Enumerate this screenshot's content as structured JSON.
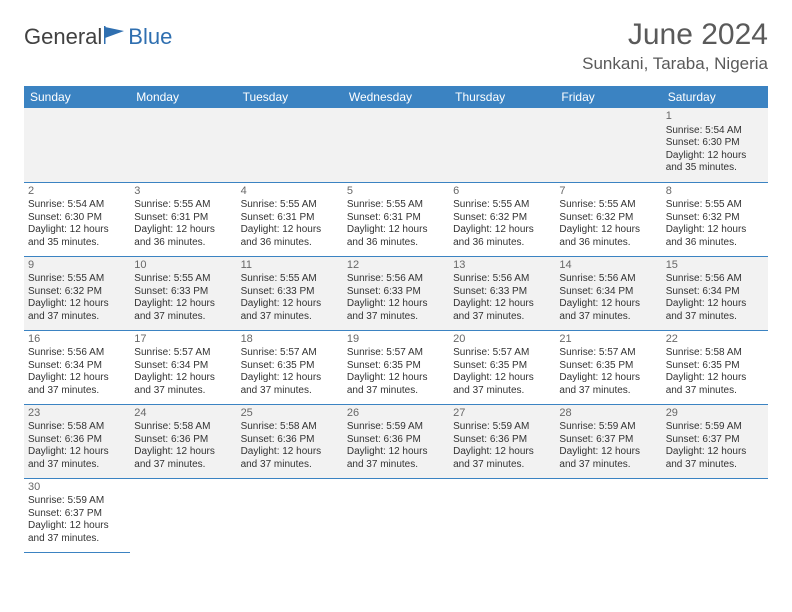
{
  "logo": {
    "text1": "General",
    "text2": "Blue",
    "flag_color": "#2f6fb0"
  },
  "title": "June 2024",
  "location": "Sunkani, Taraba, Nigeria",
  "colors": {
    "header_bg": "#3b83c2",
    "header_text": "#ffffff",
    "row_alt_bg": "#f2f2f2",
    "border": "#3b83c2",
    "title_text": "#5a5a5a",
    "body_text": "#333333"
  },
  "weekdays": [
    "Sunday",
    "Monday",
    "Tuesday",
    "Wednesday",
    "Thursday",
    "Friday",
    "Saturday"
  ],
  "first_weekday_index": 6,
  "days": [
    {
      "n": 1,
      "sunrise": "5:54 AM",
      "sunset": "6:30 PM",
      "daylight": "12 hours and 35 minutes."
    },
    {
      "n": 2,
      "sunrise": "5:54 AM",
      "sunset": "6:30 PM",
      "daylight": "12 hours and 35 minutes."
    },
    {
      "n": 3,
      "sunrise": "5:55 AM",
      "sunset": "6:31 PM",
      "daylight": "12 hours and 36 minutes."
    },
    {
      "n": 4,
      "sunrise": "5:55 AM",
      "sunset": "6:31 PM",
      "daylight": "12 hours and 36 minutes."
    },
    {
      "n": 5,
      "sunrise": "5:55 AM",
      "sunset": "6:31 PM",
      "daylight": "12 hours and 36 minutes."
    },
    {
      "n": 6,
      "sunrise": "5:55 AM",
      "sunset": "6:32 PM",
      "daylight": "12 hours and 36 minutes."
    },
    {
      "n": 7,
      "sunrise": "5:55 AM",
      "sunset": "6:32 PM",
      "daylight": "12 hours and 36 minutes."
    },
    {
      "n": 8,
      "sunrise": "5:55 AM",
      "sunset": "6:32 PM",
      "daylight": "12 hours and 36 minutes."
    },
    {
      "n": 9,
      "sunrise": "5:55 AM",
      "sunset": "6:32 PM",
      "daylight": "12 hours and 37 minutes."
    },
    {
      "n": 10,
      "sunrise": "5:55 AM",
      "sunset": "6:33 PM",
      "daylight": "12 hours and 37 minutes."
    },
    {
      "n": 11,
      "sunrise": "5:55 AM",
      "sunset": "6:33 PM",
      "daylight": "12 hours and 37 minutes."
    },
    {
      "n": 12,
      "sunrise": "5:56 AM",
      "sunset": "6:33 PM",
      "daylight": "12 hours and 37 minutes."
    },
    {
      "n": 13,
      "sunrise": "5:56 AM",
      "sunset": "6:33 PM",
      "daylight": "12 hours and 37 minutes."
    },
    {
      "n": 14,
      "sunrise": "5:56 AM",
      "sunset": "6:34 PM",
      "daylight": "12 hours and 37 minutes."
    },
    {
      "n": 15,
      "sunrise": "5:56 AM",
      "sunset": "6:34 PM",
      "daylight": "12 hours and 37 minutes."
    },
    {
      "n": 16,
      "sunrise": "5:56 AM",
      "sunset": "6:34 PM",
      "daylight": "12 hours and 37 minutes."
    },
    {
      "n": 17,
      "sunrise": "5:57 AM",
      "sunset": "6:34 PM",
      "daylight": "12 hours and 37 minutes."
    },
    {
      "n": 18,
      "sunrise": "5:57 AM",
      "sunset": "6:35 PM",
      "daylight": "12 hours and 37 minutes."
    },
    {
      "n": 19,
      "sunrise": "5:57 AM",
      "sunset": "6:35 PM",
      "daylight": "12 hours and 37 minutes."
    },
    {
      "n": 20,
      "sunrise": "5:57 AM",
      "sunset": "6:35 PM",
      "daylight": "12 hours and 37 minutes."
    },
    {
      "n": 21,
      "sunrise": "5:57 AM",
      "sunset": "6:35 PM",
      "daylight": "12 hours and 37 minutes."
    },
    {
      "n": 22,
      "sunrise": "5:58 AM",
      "sunset": "6:35 PM",
      "daylight": "12 hours and 37 minutes."
    },
    {
      "n": 23,
      "sunrise": "5:58 AM",
      "sunset": "6:36 PM",
      "daylight": "12 hours and 37 minutes."
    },
    {
      "n": 24,
      "sunrise": "5:58 AM",
      "sunset": "6:36 PM",
      "daylight": "12 hours and 37 minutes."
    },
    {
      "n": 25,
      "sunrise": "5:58 AM",
      "sunset": "6:36 PM",
      "daylight": "12 hours and 37 minutes."
    },
    {
      "n": 26,
      "sunrise": "5:59 AM",
      "sunset": "6:36 PM",
      "daylight": "12 hours and 37 minutes."
    },
    {
      "n": 27,
      "sunrise": "5:59 AM",
      "sunset": "6:36 PM",
      "daylight": "12 hours and 37 minutes."
    },
    {
      "n": 28,
      "sunrise": "5:59 AM",
      "sunset": "6:37 PM",
      "daylight": "12 hours and 37 minutes."
    },
    {
      "n": 29,
      "sunrise": "5:59 AM",
      "sunset": "6:37 PM",
      "daylight": "12 hours and 37 minutes."
    },
    {
      "n": 30,
      "sunrise": "5:59 AM",
      "sunset": "6:37 PM",
      "daylight": "12 hours and 37 minutes."
    }
  ],
  "labels": {
    "sunrise": "Sunrise:",
    "sunset": "Sunset:",
    "daylight": "Daylight:"
  }
}
